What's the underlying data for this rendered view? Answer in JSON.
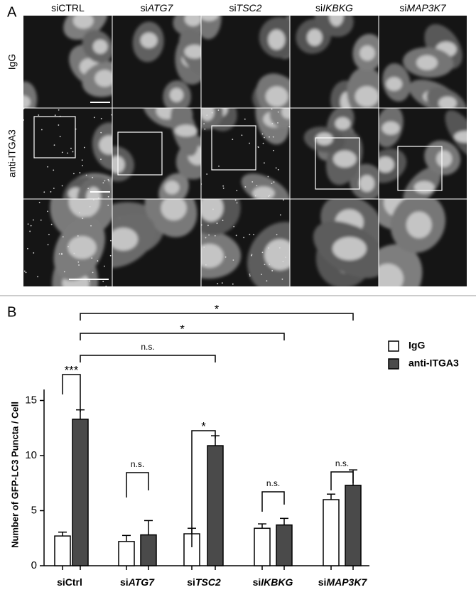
{
  "panel_a": {
    "label": "A",
    "columns": [
      "siCTRL",
      "siATG7",
      "siTSC2",
      "siIKBKG",
      "siMAP3K7"
    ],
    "column_italic": [
      false,
      true,
      true,
      true,
      true
    ],
    "rows": [
      "IgG",
      "anti-ITGA3"
    ]
  },
  "panel_b_label": "B",
  "chart_data": {
    "type": "bar",
    "ylabel": "Number of GFP-LC3 Puncta / Cell",
    "categories": [
      "siCtrl",
      "siATG7",
      "siTSC2",
      "siIKBKG",
      "siMAP3K7"
    ],
    "category_italic": [
      false,
      true,
      true,
      true,
      true
    ],
    "series": [
      {
        "name": "IgG",
        "color": "#ffffff",
        "values": [
          2.7,
          2.2,
          2.9,
          3.4,
          6.0
        ],
        "errors": [
          0.35,
          0.55,
          0.5,
          0.4,
          0.5
        ]
      },
      {
        "name": "anti-ITGA3",
        "color": "#4a4a4a",
        "values": [
          13.3,
          2.8,
          10.9,
          3.7,
          7.3
        ],
        "errors": [
          0.85,
          1.3,
          0.9,
          0.6,
          1.4
        ]
      }
    ],
    "annotations": [
      "***",
      "n.s.",
      "*",
      "n.s.",
      "n.s.",
      "n.s.",
      "*",
      "*"
    ],
    "ylim": [
      0,
      16
    ],
    "yticks": [
      0,
      5,
      10,
      15
    ],
    "legend": "upper right"
  }
}
